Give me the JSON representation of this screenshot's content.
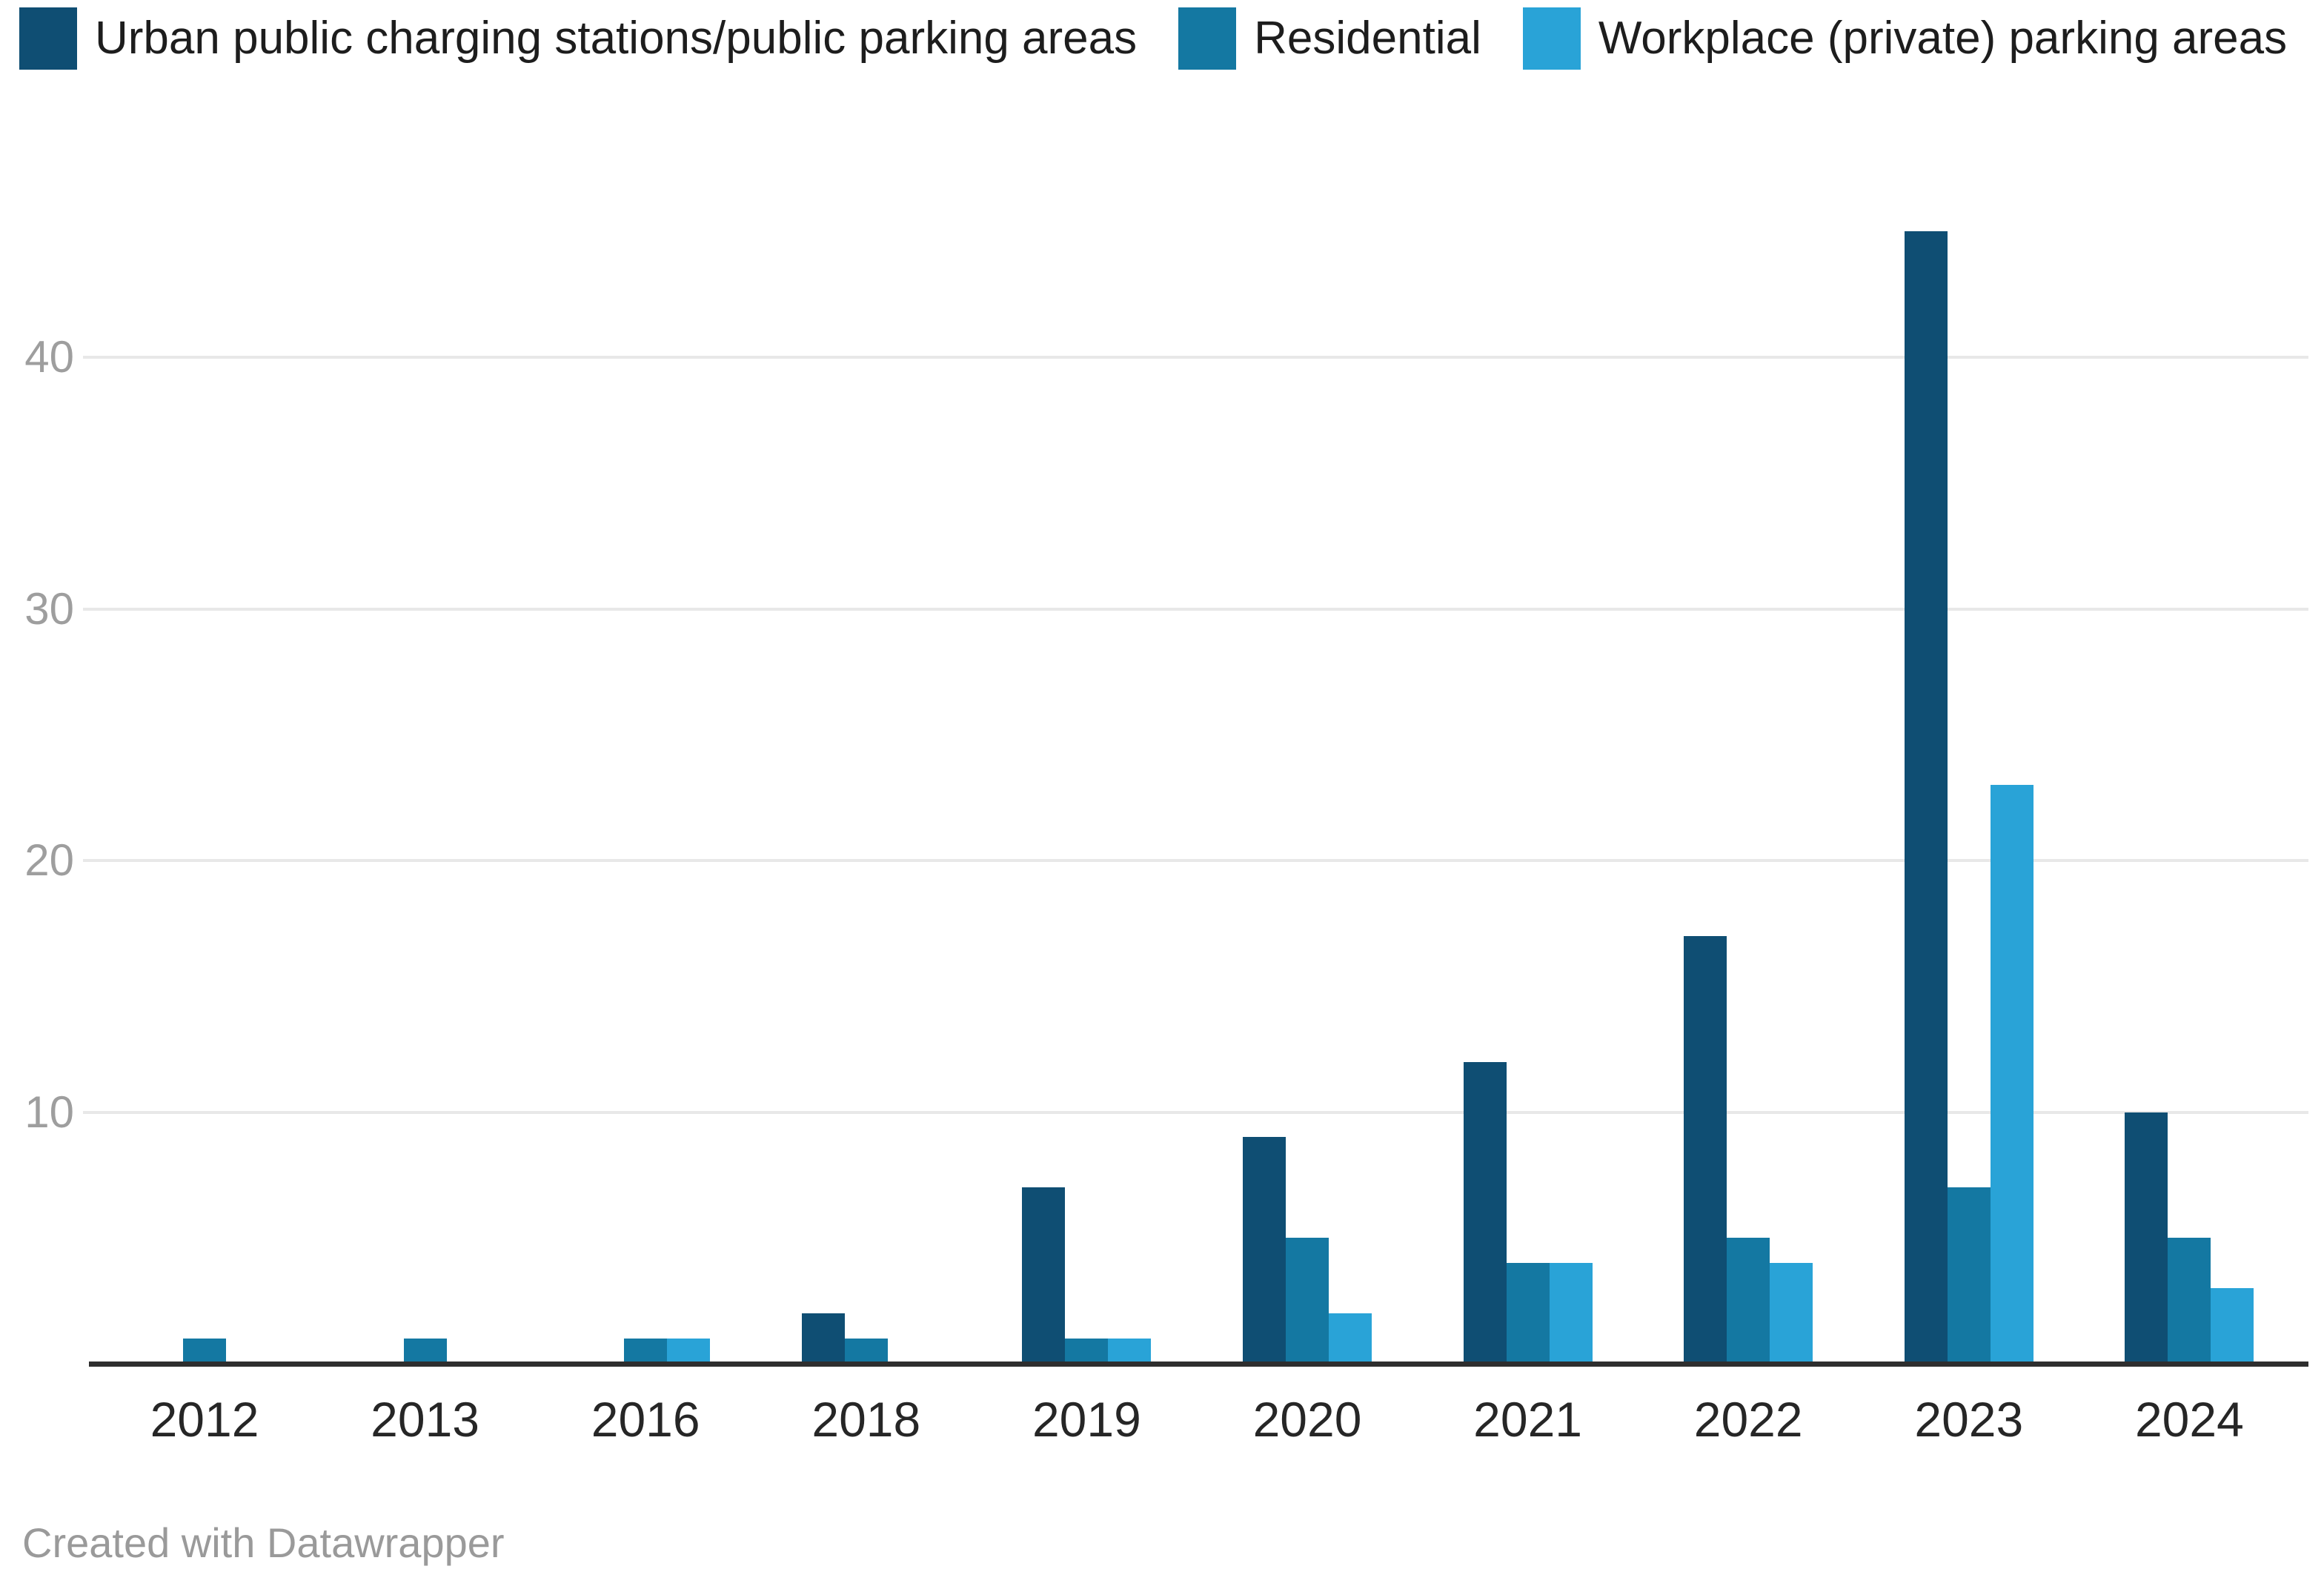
{
  "legend": {
    "items": [
      {
        "label": "Urban public charging stations/public parking areas",
        "color": "#0f4e73"
      },
      {
        "label": "Residential",
        "color": "#1478a2"
      },
      {
        "label": "Workplace (private) parking areas",
        "color": "#29a3d7"
      }
    ]
  },
  "chart_data": {
    "type": "bar",
    "title": "",
    "categories": [
      "2012",
      "2013",
      "2016",
      "2018",
      "2019",
      "2020",
      "2021",
      "2022",
      "2023",
      "2024"
    ],
    "series": [
      {
        "name": "Urban public charging stations/public parking areas",
        "color": "#0f4e73",
        "values": [
          0,
          0,
          0,
          2,
          7,
          9,
          12,
          17,
          45,
          10
        ]
      },
      {
        "name": "Residential",
        "color": "#1478a2",
        "values": [
          1,
          1,
          1,
          1,
          1,
          5,
          4,
          5,
          7,
          5
        ]
      },
      {
        "name": "Workplace (private) parking areas",
        "color": "#29a3d7",
        "values": [
          0,
          0,
          1,
          0,
          1,
          2,
          4,
          4,
          23,
          3
        ]
      }
    ],
    "xlabel": "",
    "ylabel": "",
    "ylim": [
      0,
      46
    ],
    "yticks": [
      10,
      20,
      30,
      40
    ],
    "grid": "horizontal",
    "legend_position": "top-left",
    "gridline_color": "#e8e8e8",
    "axis_line_color": "#2e2e2e",
    "xtick_color": "#262626",
    "ytick_color": "#9e9e9e"
  },
  "footer": {
    "credit": "Created with Datawrapper"
  }
}
